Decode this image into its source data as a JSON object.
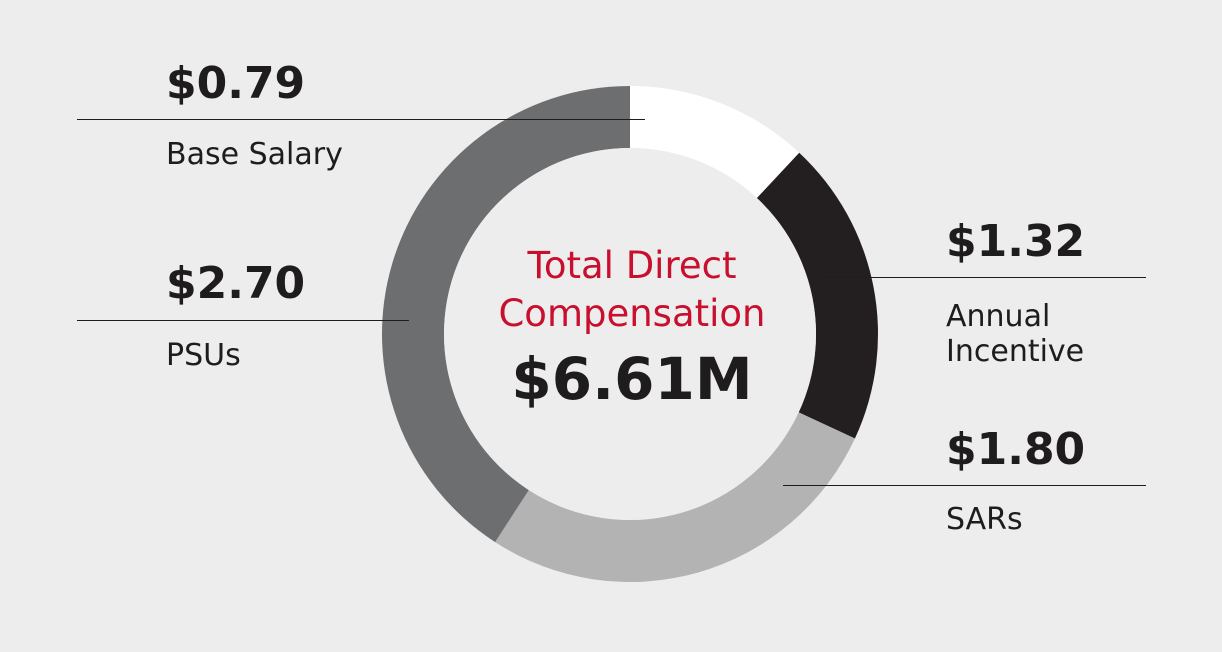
{
  "chart_data": {
    "type": "pie",
    "variant": "donut",
    "center_title_lines": [
      "Total Direct",
      "Compensation"
    ],
    "center_total": "$6.61M",
    "slices": [
      {
        "label_lines": [
          "Base Salary"
        ],
        "value": 0.79,
        "value_label": "$0.79",
        "color": "#ffffff"
      },
      {
        "label_lines": [
          "Annual",
          "Incentive"
        ],
        "value": 1.32,
        "value_label": "$1.32",
        "color": "#231f20"
      },
      {
        "label_lines": [
          "SARs"
        ],
        "value": 1.8,
        "value_label": "$1.80",
        "color": "#b3b3b3"
      },
      {
        "label_lines": [
          "PSUs"
        ],
        "value": 2.7,
        "value_label": "$2.70",
        "color": "#6d6e70"
      }
    ],
    "start_angle": "12 o'clock",
    "direction": "clockwise",
    "grid": false,
    "legend": "none"
  }
}
